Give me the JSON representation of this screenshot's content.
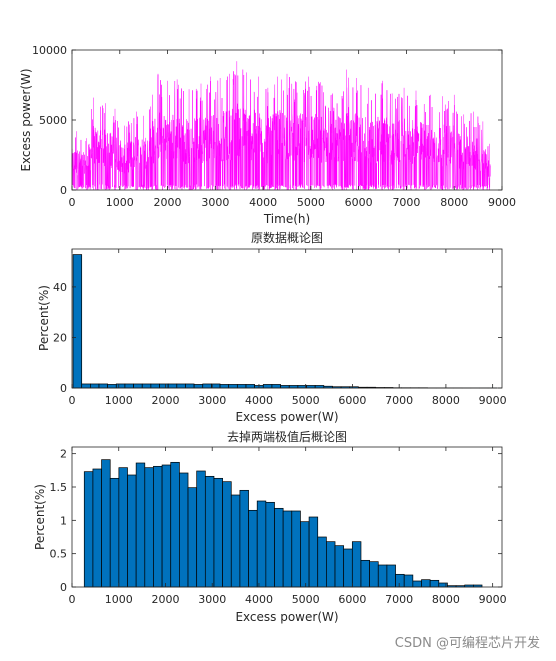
{
  "watermark": "CSDN @可编程芯片开发",
  "chart_data": [
    {
      "type": "line",
      "title": "",
      "xlabel": "Time(h)",
      "ylabel": "Excess power(W)",
      "xlim": [
        0,
        9000
      ],
      "ylim": [
        0,
        10000
      ],
      "xticks": [
        0,
        1000,
        2000,
        3000,
        4000,
        5000,
        6000,
        7000,
        8000,
        9000
      ],
      "yticks": [
        0,
        5000,
        10000
      ],
      "series_color": "#ff00ff",
      "n_points": 8760,
      "peaks": [
        {
          "x": 100,
          "y": 4200
        },
        {
          "x": 300,
          "y": 3700
        },
        {
          "x": 450,
          "y": 6600
        },
        {
          "x": 700,
          "y": 6200
        },
        {
          "x": 900,
          "y": 5800
        },
        {
          "x": 1100,
          "y": 4600
        },
        {
          "x": 1350,
          "y": 5600
        },
        {
          "x": 1500,
          "y": 5300
        },
        {
          "x": 1800,
          "y": 8300
        },
        {
          "x": 2000,
          "y": 7800
        },
        {
          "x": 2200,
          "y": 7900
        },
        {
          "x": 2450,
          "y": 7200
        },
        {
          "x": 2700,
          "y": 7600
        },
        {
          "x": 2900,
          "y": 8100
        },
        {
          "x": 3100,
          "y": 8000
        },
        {
          "x": 3300,
          "y": 8300
        },
        {
          "x": 3450,
          "y": 9200
        },
        {
          "x": 3650,
          "y": 8400
        },
        {
          "x": 3900,
          "y": 8100
        },
        {
          "x": 4100,
          "y": 7300
        },
        {
          "x": 4300,
          "y": 8100
        },
        {
          "x": 4500,
          "y": 8300
        },
        {
          "x": 4700,
          "y": 7700
        },
        {
          "x": 4950,
          "y": 8100
        },
        {
          "x": 5200,
          "y": 7700
        },
        {
          "x": 5450,
          "y": 6900
        },
        {
          "x": 5750,
          "y": 8600
        },
        {
          "x": 5950,
          "y": 8000
        },
        {
          "x": 6200,
          "y": 7300
        },
        {
          "x": 6500,
          "y": 7800
        },
        {
          "x": 6700,
          "y": 6900
        },
        {
          "x": 6950,
          "y": 7300
        },
        {
          "x": 7200,
          "y": 7100
        },
        {
          "x": 7500,
          "y": 6800
        },
        {
          "x": 7750,
          "y": 6700
        },
        {
          "x": 8000,
          "y": 6800
        },
        {
          "x": 8200,
          "y": 5400
        },
        {
          "x": 8400,
          "y": 5600
        },
        {
          "x": 8600,
          "y": 4900
        },
        {
          "x": 8740,
          "y": 3300
        }
      ]
    },
    {
      "type": "bar",
      "title": "原数据概论图",
      "xlabel": "Excess power(W)",
      "ylabel": "Percent(%)",
      "xlim": [
        0,
        9200
      ],
      "ylim": [
        0,
        55
      ],
      "xticks": [
        0,
        1000,
        2000,
        3000,
        4000,
        5000,
        6000,
        7000,
        8000,
        9000
      ],
      "yticks": [
        0,
        20,
        40
      ],
      "bar_color": "#0072bd",
      "bar_width": 185,
      "centers": [
        115,
        300,
        485,
        670,
        855,
        1040,
        1225,
        1410,
        1595,
        1780,
        1965,
        2150,
        2335,
        2520,
        2705,
        2890,
        3075,
        3260,
        3445,
        3630,
        3815,
        4000,
        4185,
        4370,
        4555,
        4740,
        4925,
        5110,
        5295,
        5480,
        5665,
        5850,
        6035,
        6220,
        6405,
        6590,
        6775,
        6960,
        7145,
        7330,
        7515,
        7700,
        7885,
        8070,
        8255,
        8440,
        8625,
        8810,
        8995
      ],
      "values": [
        52.8,
        1.6,
        1.6,
        1.6,
        1.4,
        1.6,
        1.6,
        1.6,
        1.6,
        1.6,
        1.6,
        1.6,
        1.6,
        1.6,
        1.4,
        1.6,
        1.6,
        1.4,
        1.4,
        1.4,
        1.4,
        1.0,
        1.4,
        1.4,
        1.0,
        1.0,
        1.0,
        1.0,
        1.0,
        0.7,
        0.5,
        0.5,
        0.5,
        0.3,
        0.3,
        0.2,
        0.2,
        0.1,
        0.1,
        0.1,
        0.1,
        0.05,
        0.05,
        0.05,
        0.05,
        0.03,
        0.03,
        0.03,
        0.03
      ]
    },
    {
      "type": "bar",
      "title": "去掉两端极值后概论图",
      "xlabel": "Excess power(W)",
      "ylabel": "Percent(%)",
      "xlim": [
        0,
        9200
      ],
      "ylim": [
        0,
        2.1
      ],
      "xticks": [
        0,
        1000,
        2000,
        3000,
        4000,
        5000,
        6000,
        7000,
        8000,
        9000
      ],
      "yticks": [
        0,
        0.5,
        1,
        1.5,
        2
      ],
      "bar_color": "#0072bd",
      "bar_width": 185,
      "centers": [
        355,
        540,
        725,
        910,
        1095,
        1280,
        1465,
        1650,
        1835,
        2020,
        2205,
        2390,
        2575,
        2760,
        2945,
        3130,
        3315,
        3500,
        3685,
        3870,
        4055,
        4240,
        4425,
        4610,
        4795,
        4980,
        5165,
        5350,
        5535,
        5720,
        5905,
        6090,
        6275,
        6460,
        6645,
        6830,
        7015,
        7200,
        7385,
        7570,
        7755,
        7940,
        8125,
        8310,
        8495,
        8680
      ],
      "values": [
        1.73,
        1.77,
        1.91,
        1.63,
        1.79,
        1.68,
        1.86,
        1.79,
        1.81,
        1.83,
        1.87,
        1.71,
        1.49,
        1.74,
        1.66,
        1.63,
        1.58,
        1.38,
        1.45,
        1.15,
        1.29,
        1.27,
        1.18,
        1.14,
        1.14,
        0.98,
        1.05,
        0.75,
        0.68,
        0.62,
        0.57,
        0.68,
        0.4,
        0.38,
        0.33,
        0.33,
        0.19,
        0.18,
        0.09,
        0.11,
        0.1,
        0.06,
        0.02,
        0.02,
        0.03,
        0.03
      ]
    }
  ]
}
